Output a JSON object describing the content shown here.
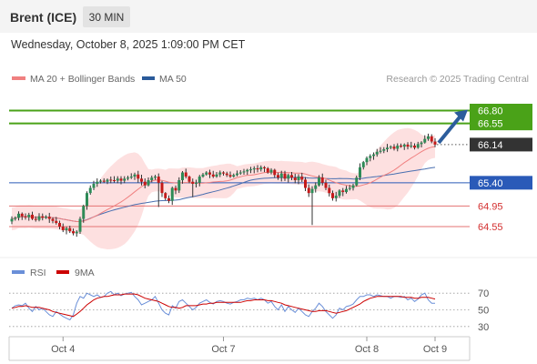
{
  "header": {
    "instrument": "Brent (ICE)",
    "timeframe": "30 MIN",
    "datetime": "Wednesday, October 8, 2025 1:09:00 PM CET"
  },
  "legend": {
    "items": [
      {
        "label": "MA 20 + Bollinger Bands",
        "color": "#f08080"
      },
      {
        "label": "MA 50",
        "color": "#2a5a9a"
      }
    ],
    "credit": "Research © 2025 Trading Central"
  },
  "colors": {
    "up": "#2e8b57",
    "down": "#c41a1a",
    "bollinger_fill": "#fde0e0",
    "ma20": "#f08080",
    "ma50": "#4a6fb0",
    "resistance": "#4aa218",
    "pivot": "#2a5ab8",
    "support": "#e57373",
    "current": "#333333",
    "arrow": "#2c5d9c",
    "rsi": "#6a8fd8",
    "rsi_ma": "#cc0000"
  },
  "chart_data": [
    {
      "type": "candlestick",
      "title": "Brent (ICE)",
      "x_ticks": [
        "Oct 4",
        "Oct 7",
        "Oct 8",
        "Oct 9"
      ],
      "ylim": [
        63.95,
        67.25
      ],
      "levels": [
        {
          "value": 66.8,
          "label": "66.80",
          "kind": "resistance"
        },
        {
          "value": 66.55,
          "label": "66.55",
          "kind": "resistance"
        },
        {
          "value": 66.14,
          "label": "66.14",
          "kind": "current"
        },
        {
          "value": 65.4,
          "label": "65.40",
          "kind": "pivot"
        },
        {
          "value": 64.95,
          "label": "64.95",
          "kind": "support"
        },
        {
          "value": 64.55,
          "label": "64.55",
          "kind": "support"
        }
      ],
      "close": [
        64.7,
        64.72,
        64.8,
        64.75,
        64.73,
        64.78,
        64.7,
        64.68,
        64.75,
        64.72,
        64.74,
        64.7,
        64.66,
        64.62,
        64.55,
        64.48,
        64.52,
        64.46,
        64.42,
        64.45,
        64.7,
        64.95,
        65.2,
        65.3,
        65.38,
        65.42,
        65.44,
        65.42,
        65.46,
        65.45,
        65.44,
        65.48,
        65.44,
        65.48,
        65.5,
        65.52,
        65.56,
        65.48,
        65.42,
        65.35,
        65.45,
        65.5,
        65.52,
        65.4,
        65.2,
        65.1,
        65.05,
        65.3,
        65.25,
        65.45,
        65.6,
        65.52,
        65.42,
        65.38,
        65.4,
        65.52,
        65.56,
        65.6,
        65.56,
        65.52,
        65.56,
        65.6,
        65.58,
        65.55,
        65.52,
        65.55,
        65.58,
        65.6,
        65.62,
        65.65,
        65.66,
        65.68,
        65.66,
        65.7,
        65.68,
        65.6,
        65.65,
        65.55,
        65.5,
        65.58,
        65.48,
        65.55,
        65.5,
        65.45,
        65.52,
        65.46,
        65.3,
        65.2,
        65.28,
        65.35,
        65.5,
        65.4,
        65.3,
        65.2,
        65.1,
        65.15,
        65.25,
        65.22,
        65.28,
        65.3,
        65.35,
        65.5,
        65.7,
        65.8,
        65.88,
        65.92,
        65.95,
        66.0,
        66.02,
        66.05,
        66.08,
        66.1,
        66.06,
        66.12,
        66.1,
        66.14,
        66.1,
        66.12,
        66.08,
        66.15,
        66.18,
        66.25,
        66.3,
        66.2,
        66.14
      ],
      "x_axis": "time (30-minute bars)"
    },
    {
      "type": "line",
      "title": "RSI",
      "yticks": [
        70,
        50,
        30
      ],
      "ylim": [
        20,
        80
      ],
      "series": [
        {
          "name": "RSI",
          "values": [
            52,
            55,
            56,
            55,
            58,
            52,
            48,
            54,
            50,
            52,
            48,
            44,
            42,
            48,
            45,
            42,
            40,
            38,
            44,
            58,
            66,
            64,
            70,
            68,
            66,
            68,
            65,
            66,
            70,
            72,
            68,
            70,
            67,
            69,
            70,
            71,
            66,
            62,
            56,
            58,
            60,
            62,
            66,
            58,
            50,
            46,
            44,
            55,
            52,
            60,
            62,
            58,
            54,
            50,
            53,
            58,
            60,
            62,
            59,
            57,
            60,
            61,
            60,
            58,
            57,
            59,
            60,
            62,
            62,
            64,
            63,
            64,
            62,
            64,
            62,
            58,
            60,
            54,
            50,
            56,
            48,
            54,
            50,
            47,
            52,
            48,
            44,
            42,
            48,
            52,
            58,
            54,
            48,
            44,
            40,
            44,
            52,
            50,
            54,
            55,
            57,
            62,
            66,
            66,
            68,
            68,
            66,
            68,
            67,
            66,
            66,
            64,
            66,
            66,
            65,
            66,
            62,
            64,
            60,
            63,
            68,
            70,
            62,
            58,
            58
          ]
        },
        {
          "name": "9MA",
          "values": [
            52,
            53,
            54,
            54,
            55,
            54,
            53,
            53,
            53,
            52,
            51,
            50,
            48,
            47,
            46,
            45,
            44,
            43,
            42,
            45,
            48,
            52,
            56,
            59,
            62,
            64,
            65,
            66,
            66,
            67,
            68,
            68,
            68,
            69,
            69,
            69,
            69,
            68,
            66,
            64,
            63,
            62,
            61,
            60,
            58,
            56,
            54,
            53,
            53,
            52,
            53,
            55,
            55,
            55,
            55,
            56,
            57,
            57,
            58,
            58,
            59,
            59,
            59,
            59,
            59,
            59,
            59,
            59,
            60,
            61,
            61,
            62,
            62,
            62,
            62,
            61,
            61,
            60,
            59,
            58,
            56,
            55,
            54,
            53,
            52,
            51,
            50,
            49,
            48,
            48,
            49,
            49,
            49,
            48,
            47,
            46,
            47,
            48,
            49,
            51,
            53,
            55,
            57,
            60,
            62,
            64,
            65,
            66,
            66,
            66,
            66,
            66,
            66,
            66,
            66,
            65,
            65,
            65,
            64,
            64,
            65,
            65,
            65,
            64,
            63
          ]
        }
      ]
    }
  ]
}
